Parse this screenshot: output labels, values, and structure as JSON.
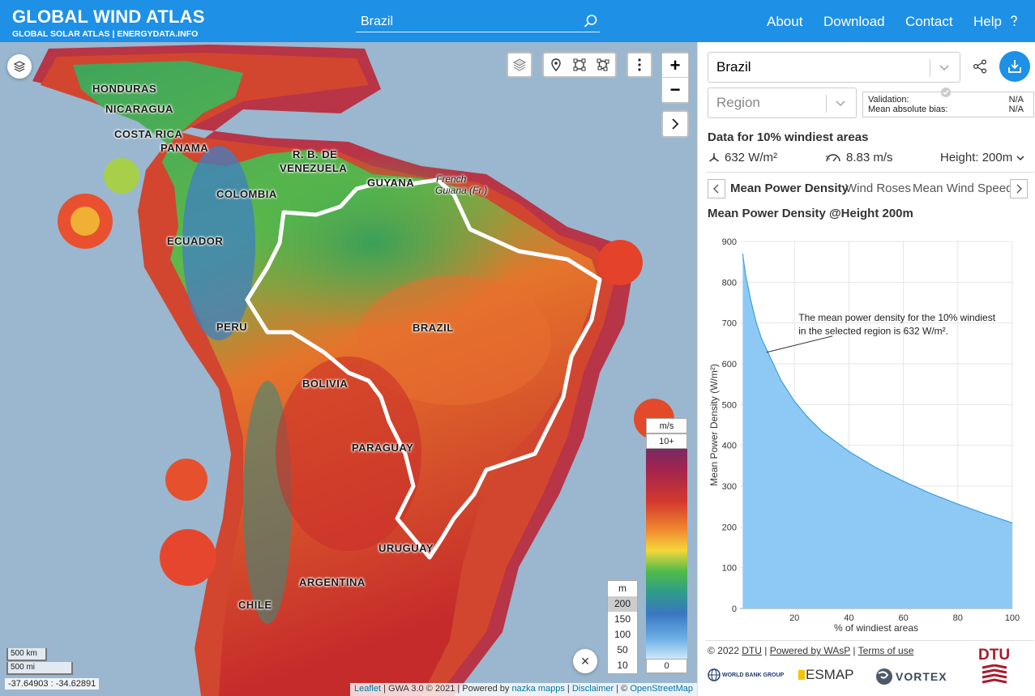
{
  "header": {
    "title": "GLOBAL WIND ATLAS",
    "subtitle": "GLOBAL SOLAR ATLAS | ENERGYDATA.INFO",
    "search_value": "Brazil",
    "nav": {
      "about": "About",
      "download": "Download",
      "contact": "Contact",
      "help": "Help"
    }
  },
  "map": {
    "labels": {
      "honduras": "HONDURAS",
      "nicaragua": "NICARAGUA",
      "costa_rica": "COSTA RICA",
      "panama": "PANAMA",
      "venezuela_1": "R. B. DE",
      "venezuela_2": "VENEZUELA",
      "guyana": "GUYANA",
      "french_guiana_1": "French",
      "french_guiana_2": "Guiana (Fr.)",
      "colombia": "COLOMBIA",
      "ecuador": "ECUADOR",
      "peru": "PERU",
      "brazil": "BRAZIL",
      "bolivia": "BOLIVIA",
      "paraguay": "PARAGUAY",
      "uruguay": "URUGUAY",
      "argentina": "ARGENTINA",
      "chile": "CHILE"
    },
    "zoom_in": "+",
    "zoom_out": "−",
    "legend": {
      "unit": "m/s",
      "top": "10+",
      "bottom": "0"
    },
    "height_legend": {
      "unit": "m",
      "options": [
        "200",
        "150",
        "100",
        "50",
        "10"
      ],
      "selected": "200"
    },
    "scale_km": "500 km",
    "scale_mi": "500 mi",
    "coords": "-37.64903 : -34.62891",
    "attribution": {
      "leaflet": "Leaflet",
      "gwa": " | GWA 3.0 © 2021 | Powered by ",
      "nazka": "nazka mapps",
      "sep": " | ",
      "disclaimer": "Disclaimer",
      "osm_prefix": " | © ",
      "osm": "OpenStreetMap"
    },
    "close": "×"
  },
  "panel": {
    "country_select": "Brazil",
    "region_select": "Region",
    "validation_label": "Validation:",
    "validation_value": "N/A",
    "bias_label": "Mean absolute bias:",
    "bias_value": "N/A",
    "data_title": "Data for 10% windiest areas",
    "power_density": "632 W/m²",
    "wind_speed": "8.83 m/s",
    "height": "Height: 200m",
    "tabs": [
      "Mean Power Density",
      "Wind Roses",
      "Mean Wind Speed"
    ],
    "chart_title": "Mean Power Density @Height 200m",
    "footer": {
      "copyright": "© 2022",
      "dtu": "DTU",
      "sep": "|",
      "wasp": "Powered by WAsP",
      "terms": "Terms of use"
    },
    "logos": {
      "world_bank": "WORLD BANK GROUP",
      "esmap": "ESMAP",
      "vortex": "VORTEX",
      "dtu": "DTU"
    }
  },
  "chart_data": {
    "type": "area",
    "title": "Mean Power Density @Height 200m",
    "xlabel": "% of windiest areas",
    "ylabel": "Mean Power Density (W/m²)",
    "xlim": [
      0,
      100
    ],
    "ylim": [
      0,
      900
    ],
    "xticks": [
      20,
      40,
      60,
      80,
      100
    ],
    "yticks": [
      0,
      100,
      200,
      300,
      400,
      500,
      600,
      700,
      800,
      900
    ],
    "x": [
      1,
      2,
      4,
      6,
      8,
      10,
      15,
      20,
      25,
      30,
      40,
      50,
      60,
      70,
      80,
      90,
      100
    ],
    "values": [
      870,
      820,
      755,
      700,
      660,
      632,
      560,
      508,
      468,
      435,
      385,
      345,
      312,
      282,
      256,
      232,
      210
    ],
    "annotation": "The mean power density for the 10% windiest in the selected region is 632 W/m².",
    "annotation_line_1": "The mean power density for the 10% windiest",
    "annotation_line_2": "in the selected region is 632 W/m².",
    "grid": true,
    "fill_color": "#8ec9f5",
    "line_color": "#3c9ee0"
  }
}
